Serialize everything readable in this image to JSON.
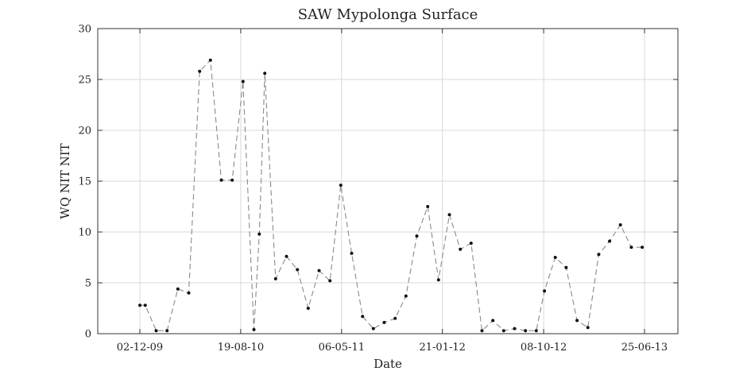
{
  "chart_data": {
    "type": "line",
    "title": "SAW Mypolonga Surface",
    "xlabel": "Date",
    "ylabel": "WQ NIT NIT",
    "x_tick_labels": [
      "02-12-09",
      "19-08-10",
      "06-05-11",
      "21-01-12",
      "08-10-12",
      "25-06-13"
    ],
    "y_tick_labels": [
      "0",
      "5",
      "10",
      "15",
      "20",
      "25",
      "30"
    ],
    "ylim": [
      0,
      30
    ],
    "grid": true,
    "line_style": "dashed",
    "colors": {
      "line": "#8a8a8a",
      "marker": "#111111",
      "grid": "#d9d9d9",
      "axis": "#333333"
    },
    "series": [
      {
        "x": [
          "2009-12-02",
          "2009-12-16",
          "2010-01-13",
          "2010-02-10",
          "2010-03-10",
          "2010-04-07",
          "2010-05-05",
          "2010-06-02",
          "2010-06-30",
          "2010-07-28",
          "2010-08-25",
          "2010-09-22",
          "2010-10-06",
          "2010-10-20",
          "2010-11-17",
          "2010-12-15",
          "2011-01-12",
          "2011-02-09",
          "2011-03-09",
          "2011-04-06",
          "2011-05-04",
          "2011-06-01",
          "2011-06-29",
          "2011-07-27",
          "2011-08-24",
          "2011-09-21",
          "2011-10-19",
          "2011-11-16",
          "2011-12-14",
          "2012-01-11",
          "2012-02-08",
          "2012-03-07",
          "2012-04-04",
          "2012-05-02",
          "2012-05-30",
          "2012-06-27",
          "2012-07-25",
          "2012-08-22",
          "2012-09-19",
          "2012-10-10",
          "2012-11-07",
          "2012-12-05",
          "2013-01-02",
          "2013-01-30",
          "2013-02-27",
          "2013-03-27",
          "2013-04-24",
          "2013-05-22",
          "2013-06-19"
        ],
        "y": [
          2.8,
          2.8,
          0.3,
          0.3,
          4.4,
          4.0,
          25.8,
          26.9,
          15.1,
          15.1,
          24.8,
          0.4,
          9.8,
          25.6,
          5.4,
          7.6,
          6.3,
          2.5,
          6.2,
          5.2,
          14.6,
          7.9,
          1.7,
          0.5,
          1.1,
          1.5,
          3.7,
          9.6,
          12.5,
          5.3,
          11.7,
          8.3,
          8.9,
          0.3,
          1.3,
          0.3,
          0.5,
          0.3,
          0.3,
          4.2,
          7.5,
          6.5,
          1.3,
          0.6,
          7.8,
          9.1,
          10.7,
          8.5,
          8.5
        ]
      }
    ]
  }
}
